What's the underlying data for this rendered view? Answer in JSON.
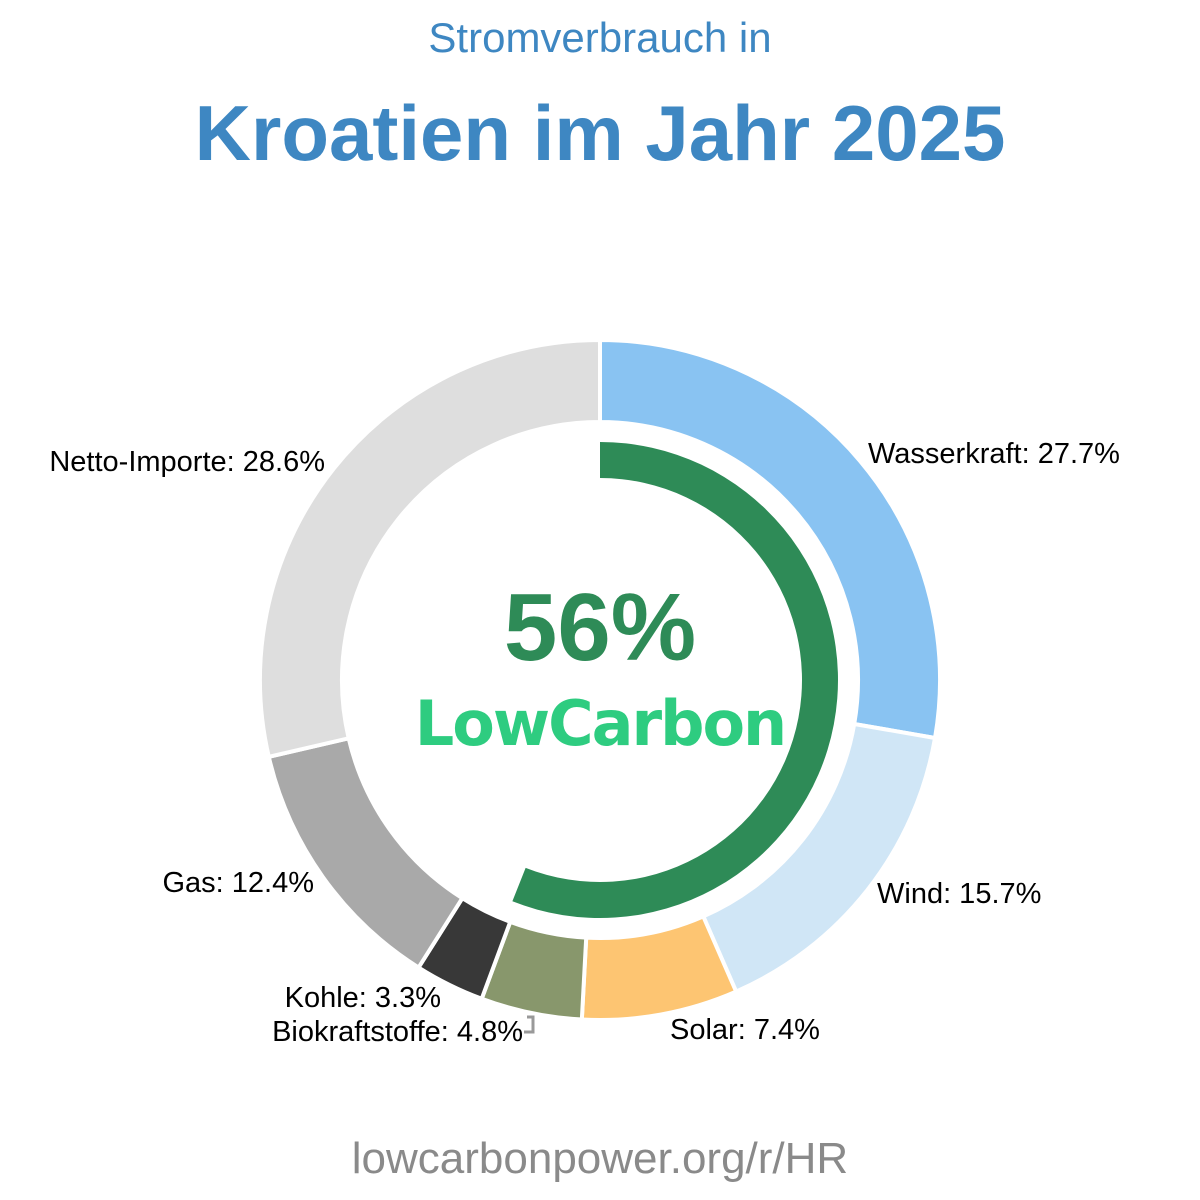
{
  "header": {
    "subtitle": "Stromverbrauch in",
    "title": "Kroatien im Jahr 2025"
  },
  "center": {
    "percent": "56%",
    "brand": "LowCarbon",
    "percent_color": "#2e8b57",
    "brand_color": "#2ecc80"
  },
  "footer": {
    "url": "lowcarbonpower.org/r/HR"
  },
  "chart_data": {
    "type": "pie",
    "variant": "donut",
    "title": "Stromverbrauch in Kroatien im Jahr 2025",
    "categories": [
      "Wasserkraft",
      "Wind",
      "Solar",
      "Biokraftstoffe",
      "Kohle",
      "Gas",
      "Netto-Importe"
    ],
    "values": [
      27.7,
      15.7,
      7.4,
      4.8,
      3.3,
      12.4,
      28.6
    ],
    "colors": [
      "#89c3f2",
      "#d0e6f6",
      "#fdc572",
      "#88976c",
      "#383838",
      "#a9a9a9",
      "#dedede"
    ],
    "labels": [
      "Wasserkraft: 27.7%",
      "Wind: 15.7%",
      "Solar: 7.4%",
      "Biokraftstoffe: 4.8%",
      "Kohle: 3.3%",
      "Gas: 12.4%",
      "Netto-Importe: 28.6%"
    ],
    "low_carbon_share": 56,
    "low_carbon_arc_color": "#2e8b57"
  }
}
